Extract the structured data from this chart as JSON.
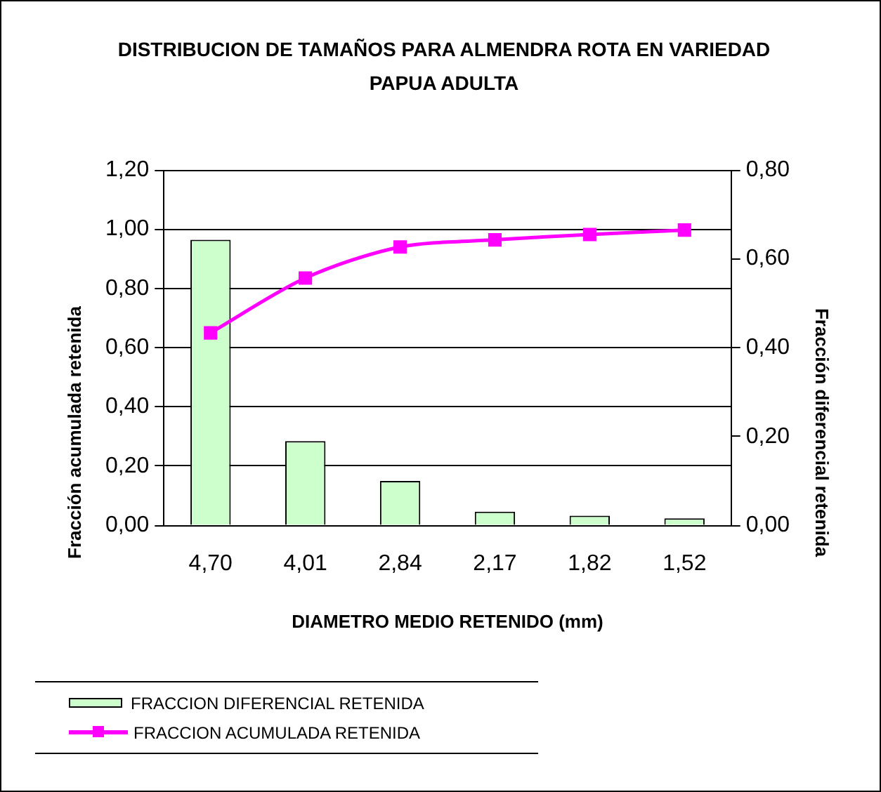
{
  "chart_data": {
    "type": "bar",
    "title": "DISTRIBUCION DE TAMAÑOS   PARA ALMENDRA ROTA EN VARIEDAD PAPUA ADULTA",
    "xlabel": "DIAMETRO MEDIO RETENIDO (mm)",
    "ylabel": "Fracción acumulada retenida",
    "y2label": "Fracción diferencial retenida",
    "categories": [
      "4,70",
      "4,01",
      "2,84",
      "2,17",
      "1,82",
      "1,52"
    ],
    "series": [
      {
        "name": "FRACCION DIFERENCIAL RETENIDA",
        "type": "bar",
        "axis": "y2",
        "color": "#ccffcc",
        "values": [
          0.643,
          0.19,
          0.1,
          0.031,
          0.022,
          0.016
        ]
      },
      {
        "name": "FRACCION ACUMULADA RETENIDA",
        "type": "line",
        "axis": "y",
        "color": "#ff00ff",
        "marker": "square",
        "values": [
          0.65,
          0.835,
          0.94,
          0.964,
          0.982,
          0.997
        ]
      }
    ],
    "ylim": [
      0,
      1.2
    ],
    "yticks": [
      {
        "value": 0,
        "label": "0,00"
      },
      {
        "value": 0.2,
        "label": "0,20"
      },
      {
        "value": 0.4,
        "label": "0,40"
      },
      {
        "value": 0.6,
        "label": "0,60"
      },
      {
        "value": 0.8,
        "label": "0,80"
      },
      {
        "value": 1,
        "label": "1,00"
      },
      {
        "value": 1.2,
        "label": "1,20"
      }
    ],
    "y2lim": [
      0,
      0.8
    ],
    "y2ticks": [
      {
        "value": 0,
        "label": "0,00"
      },
      {
        "value": 0.2,
        "label": "0,20"
      },
      {
        "value": 0.4,
        "label": "0,40"
      },
      {
        "value": 0.6,
        "label": "0,60"
      },
      {
        "value": 0.8,
        "label": "0,80"
      }
    ],
    "grid": "y",
    "legend": "bottom"
  }
}
